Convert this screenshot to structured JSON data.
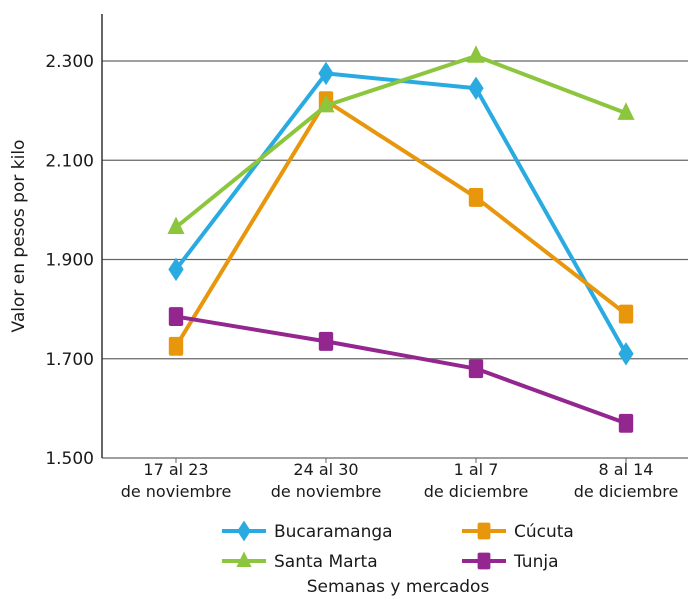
{
  "chart_data": {
    "type": "line",
    "title": "",
    "xlabel": "Semanas y mercados",
    "ylabel": "Valor en pesos por kilo",
    "ylim": [
      1500,
      2300
    ],
    "yticks": [
      1500,
      1700,
      1900,
      2100,
      2300
    ],
    "ytick_labels": [
      "1.500",
      "1.700",
      "1.900",
      "2.100",
      "2.300"
    ],
    "grid": true,
    "legend_position": "bottom",
    "categories": [
      [
        "17 al 23",
        "de noviembre"
      ],
      [
        "24 al 30",
        "de noviembre"
      ],
      [
        "1 al 7",
        "de diciembre"
      ],
      [
        "8 al 14",
        "de diciembre"
      ]
    ],
    "series": [
      {
        "name": "Bucaramanga",
        "color": "#29abe2",
        "marker": "diamond",
        "values": [
          1880,
          2275,
          2245,
          1710
        ]
      },
      {
        "name": "Cúcuta",
        "color": "#e8960c",
        "marker": "square",
        "values": [
          1725,
          2220,
          2025,
          1790
        ]
      },
      {
        "name": "Santa Marta",
        "color": "#8cc63f",
        "marker": "triangle",
        "values": [
          1965,
          2210,
          2310,
          2195
        ]
      },
      {
        "name": "Tunja",
        "color": "#93278f",
        "marker": "square",
        "values": [
          1785,
          1735,
          1680,
          1570
        ]
      }
    ]
  }
}
